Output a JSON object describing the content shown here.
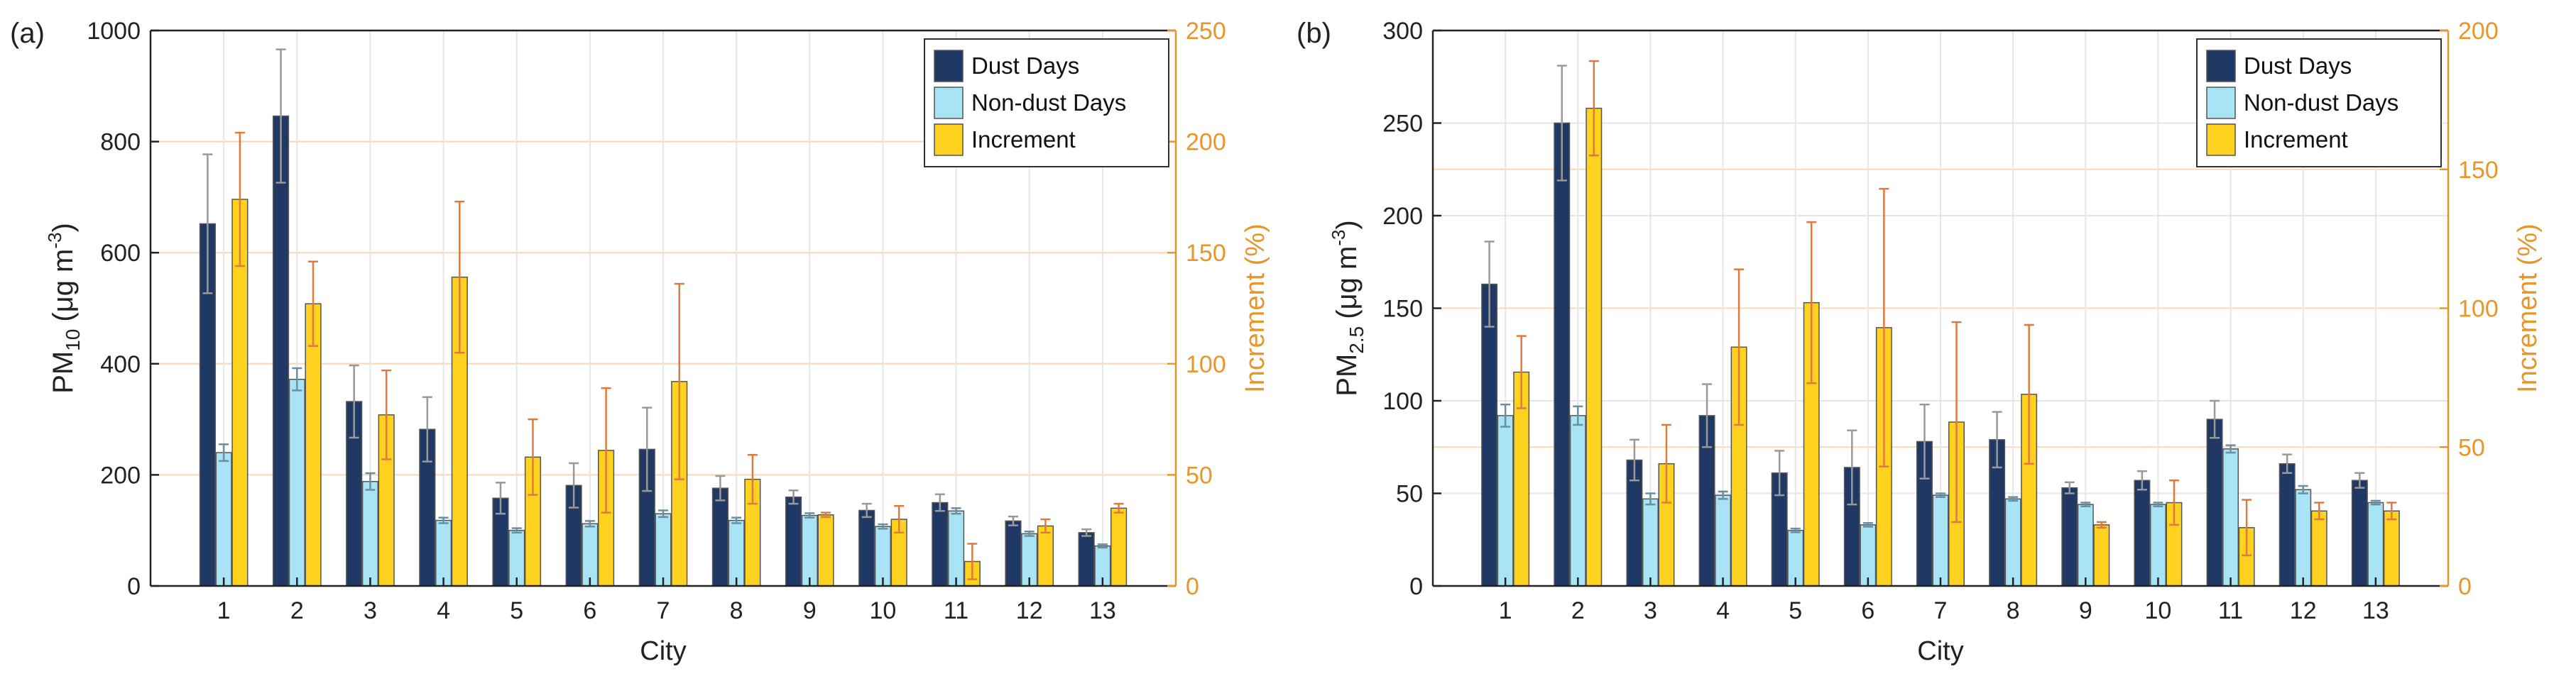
{
  "chart_data": [
    {
      "type": "bar",
      "panel_label": "(a)",
      "title": "",
      "xlabel": "City",
      "ylabel_main": "PM",
      "ylabel_sub": "10",
      "ylabel_unit": "(μg m",
      "ylabel_exp": "-3",
      "ylabel_close": ")",
      "y2label": "Increment (%)",
      "categories": [
        "1",
        "2",
        "3",
        "4",
        "5",
        "6",
        "7",
        "8",
        "9",
        "10",
        "11",
        "12",
        "13"
      ],
      "ylim": [
        0,
        1000
      ],
      "yticks": [
        0,
        200,
        400,
        600,
        800,
        1000
      ],
      "y2lim": [
        0,
        250
      ],
      "y2ticks": [
        0,
        50,
        100,
        150,
        200,
        250
      ],
      "grid": true,
      "legend": "top-right",
      "series": [
        {
          "name": "Dust Days",
          "axis": "left",
          "color": "#1f3864",
          "values": [
            652,
            846,
            332,
            282,
            158,
            181,
            246,
            176,
            160,
            136,
            150,
            117,
            96
          ],
          "errors": [
            125,
            120,
            65,
            58,
            28,
            40,
            75,
            22,
            12,
            12,
            15,
            8,
            6
          ]
        },
        {
          "name": "Non-dust Days",
          "axis": "left",
          "color": "#a8e4f5",
          "values": [
            240,
            372,
            188,
            118,
            100,
            112,
            130,
            118,
            127,
            107,
            135,
            94,
            72
          ],
          "errors": [
            15,
            20,
            15,
            5,
            4,
            5,
            6,
            5,
            4,
            4,
            5,
            4,
            3
          ]
        },
        {
          "name": "Increment",
          "axis": "right",
          "color": "#ffd21f",
          "values": [
            174,
            127,
            77,
            139,
            58,
            61,
            92,
            48,
            32,
            30,
            11,
            27,
            35
          ],
          "errors": [
            30,
            19,
            20,
            34,
            17,
            28,
            44,
            11,
            1,
            6,
            8,
            3,
            2
          ]
        }
      ]
    },
    {
      "type": "bar",
      "panel_label": "(b)",
      "title": "",
      "xlabel": "City",
      "ylabel_main": "PM",
      "ylabel_sub": "2.5",
      "ylabel_unit": "(μg m",
      "ylabel_exp": "-3",
      "ylabel_close": ")",
      "y2label": "Increment (%)",
      "categories": [
        "1",
        "2",
        "3",
        "4",
        "5",
        "6",
        "7",
        "8",
        "9",
        "10",
        "11",
        "12",
        "13"
      ],
      "ylim": [
        0,
        300
      ],
      "yticks": [
        0,
        50,
        100,
        150,
        200,
        250,
        300
      ],
      "y2lim": [
        0,
        200
      ],
      "y2ticks": [
        0,
        50,
        100,
        150,
        200
      ],
      "grid": true,
      "legend": "top-right",
      "series": [
        {
          "name": "Dust Days",
          "axis": "left",
          "color": "#1f3864",
          "values": [
            163,
            250,
            68,
            92,
            61,
            64,
            78,
            79,
            53,
            57,
            90,
            66,
            57
          ],
          "errors": [
            23,
            31,
            11,
            17,
            12,
            20,
            20,
            15,
            3,
            5,
            10,
            5,
            4
          ]
        },
        {
          "name": "Non-dust Days",
          "axis": "left",
          "color": "#a8e4f5",
          "values": [
            92,
            92,
            47,
            49,
            30,
            33,
            49,
            47,
            44,
            44,
            74,
            52,
            45
          ],
          "errors": [
            6,
            5,
            3,
            2,
            1,
            1,
            1,
            1,
            1,
            1,
            2,
            2,
            1
          ]
        },
        {
          "name": "Increment",
          "axis": "right",
          "color": "#ffd21f",
          "values": [
            77,
            172,
            44,
            86,
            102,
            93,
            59,
            69,
            22,
            30,
            21,
            27,
            27
          ],
          "errors": [
            13,
            17,
            14,
            28,
            29,
            50,
            36,
            25,
            1,
            8,
            10,
            3,
            3
          ]
        }
      ]
    }
  ]
}
